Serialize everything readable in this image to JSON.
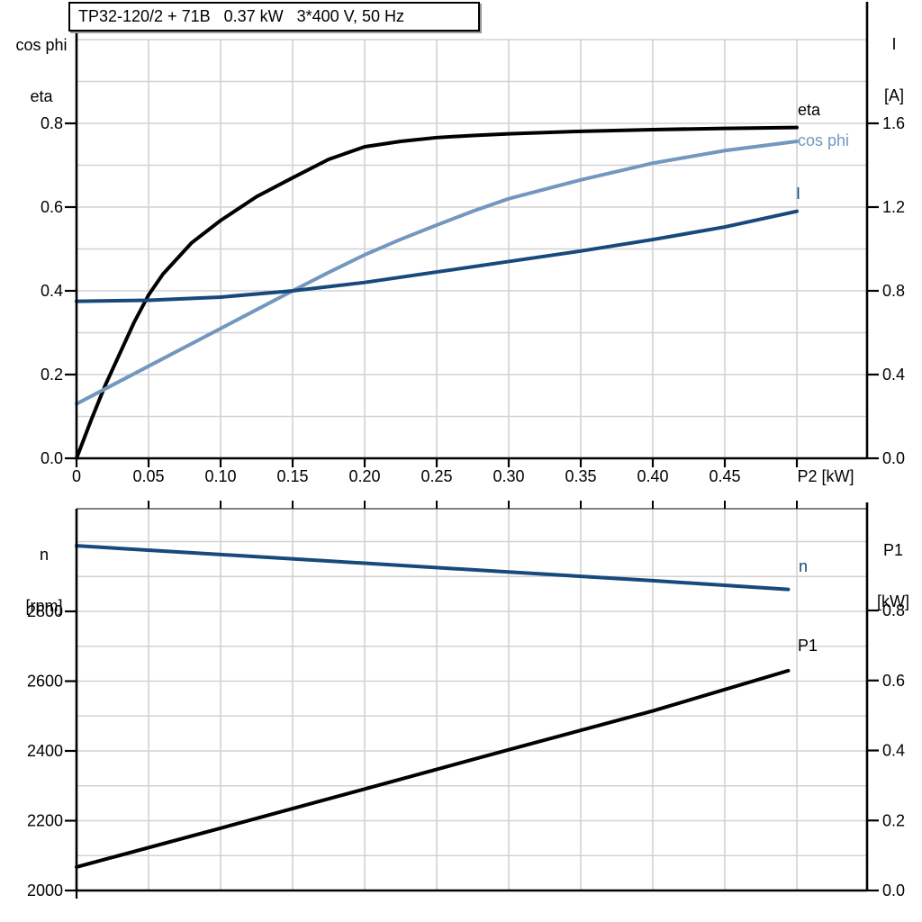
{
  "title_box": {
    "text": "TP32-120/2 + 71B   0.37 kW   3*400 V, 50 Hz"
  },
  "colors": {
    "black": "#000000",
    "dark_blue": "#17497c",
    "light_blue": "#7397bf",
    "grid": "#d2d2d2",
    "frame_gray": "#7f7f7f",
    "background": "#ffffff"
  },
  "top_chart": {
    "left_axis": {
      "title_lines": [
        "cos phi",
        "eta"
      ],
      "ticks": [
        "0.8",
        "0.6",
        "0.4",
        "0.2",
        "0.0"
      ]
    },
    "right_axis": {
      "title_lines": [
        "I",
        "[A]"
      ],
      "ticks": [
        "1.6",
        "1.2",
        "0.8",
        "0.4",
        "0.0"
      ]
    },
    "x_axis": {
      "ticks": [
        "0",
        "0.05",
        "0.10",
        "0.15",
        "0.20",
        "0.25",
        "0.30",
        "0.35",
        "0.40",
        "0.45"
      ],
      "label": "P2 [kW]"
    },
    "curve_labels": {
      "eta": "eta",
      "cos_phi": "cos phi",
      "current": "I"
    }
  },
  "bottom_chart": {
    "left_axis": {
      "title_lines": [
        "n",
        "[rpm]"
      ],
      "ticks": [
        "2800",
        "2600",
        "2400",
        "2200",
        "2000"
      ]
    },
    "right_axis": {
      "title_lines": [
        "P1",
        "[kW]"
      ],
      "ticks": [
        "0.8",
        "0.6",
        "0.4",
        "0.2",
        "0.0"
      ]
    },
    "curve_labels": {
      "n": "n",
      "p1": "P1"
    }
  },
  "chart_data": [
    {
      "type": "line",
      "title": "TP32-120/2 + 71B  0.37 kW  3*400 V, 50 Hz",
      "xlabel": "P2 [kW]",
      "x_range": [
        0,
        0.549
      ],
      "x_tick_values": [
        0,
        0.05,
        0.1,
        0.15,
        0.2,
        0.25,
        0.3,
        0.35,
        0.4,
        0.45
      ],
      "x_grid_step": 0.05,
      "left_axis": {
        "label": "cos phi / eta",
        "range": [
          0,
          1.0
        ],
        "tick_values": [
          0.8,
          0.6,
          0.4,
          0.2,
          0.0
        ],
        "grid_step": 0.1
      },
      "right_axis": {
        "label": "I [A]",
        "range": [
          0,
          2.0
        ],
        "tick_values": [
          1.6,
          1.2,
          0.8,
          0.4,
          0.0
        ]
      },
      "series": [
        {
          "name": "eta",
          "axis": "left",
          "color_key": "black",
          "x": [
            0,
            0.01,
            0.02,
            0.03,
            0.04,
            0.05,
            0.06,
            0.08,
            0.1,
            0.125,
            0.15,
            0.175,
            0.2,
            0.225,
            0.25,
            0.275,
            0.3,
            0.35,
            0.4,
            0.45,
            0.5
          ],
          "y": [
            0,
            0.09,
            0.175,
            0.25,
            0.325,
            0.39,
            0.44,
            0.515,
            0.568,
            0.625,
            0.67,
            0.714,
            0.744,
            0.757,
            0.766,
            0.771,
            0.775,
            0.781,
            0.785,
            0.788,
            0.79
          ]
        },
        {
          "name": "cos phi",
          "axis": "left",
          "color_key": "light_blue",
          "x": [
            0,
            0.01,
            0.02,
            0.03,
            0.04,
            0.05,
            0.06,
            0.08,
            0.1,
            0.125,
            0.15,
            0.175,
            0.2,
            0.225,
            0.25,
            0.275,
            0.3,
            0.35,
            0.4,
            0.45,
            0.5
          ],
          "y": [
            0.13,
            0.148,
            0.166,
            0.184,
            0.202,
            0.22,
            0.238,
            0.274,
            0.31,
            0.355,
            0.4,
            0.444,
            0.486,
            0.523,
            0.557,
            0.59,
            0.62,
            0.665,
            0.705,
            0.735,
            0.757
          ]
        },
        {
          "name": "I",
          "axis": "right",
          "color_key": "dark_blue",
          "x": [
            0,
            0.05,
            0.1,
            0.15,
            0.2,
            0.25,
            0.3,
            0.35,
            0.4,
            0.45,
            0.5
          ],
          "y": [
            0.75,
            0.755,
            0.77,
            0.8,
            0.84,
            0.89,
            0.94,
            0.99,
            1.045,
            1.105,
            1.18
          ]
        }
      ]
    },
    {
      "type": "line",
      "xlabel": "P2 [kW]",
      "x_range": [
        0,
        0.549
      ],
      "x_grid_step": 0.05,
      "left_axis": {
        "label": "n [rpm]",
        "range": [
          2000,
          3095
        ],
        "tick_values": [
          2800,
          2600,
          2400,
          2200,
          2000
        ],
        "grid_step": 100
      },
      "right_axis": {
        "label": "P1 [kW]",
        "range": [
          0,
          1.09
        ],
        "tick_values": [
          0.8,
          0.6,
          0.4,
          0.2,
          0.0
        ]
      },
      "series": [
        {
          "name": "n",
          "axis": "left",
          "color_key": "dark_blue",
          "x": [
            0,
            0.1,
            0.2,
            0.3,
            0.4,
            0.494
          ],
          "y": [
            2988,
            2963,
            2938,
            2913,
            2888,
            2863
          ]
        },
        {
          "name": "P1",
          "axis": "right",
          "color_key": "black",
          "x": [
            0,
            0.1,
            0.2,
            0.3,
            0.4,
            0.494
          ],
          "y": [
            0.067,
            0.178,
            0.29,
            0.402,
            0.513,
            0.628
          ]
        }
      ]
    }
  ]
}
